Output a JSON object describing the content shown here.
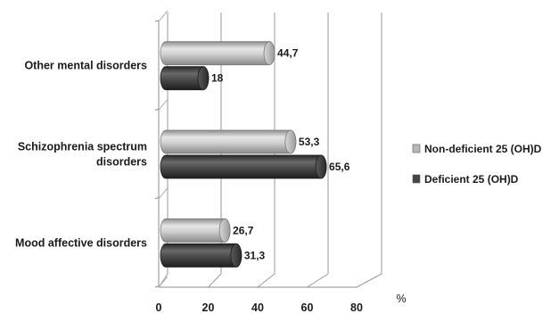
{
  "chart_data": {
    "type": "bar",
    "orientation": "horizontal",
    "style": "3d-cylinder",
    "categories": [
      "Other mental disorders",
      "Schizophrenia spectrum disorders",
      "Mood affective disorders"
    ],
    "category_display": [
      [
        "Other mental disorders"
      ],
      [
        "Schizophrenia spectrum",
        "disorders"
      ],
      [
        "Mood affective disorders"
      ]
    ],
    "series": [
      {
        "name": "Non-deficient  25 (OH)D",
        "values": [
          44.7,
          53.3,
          26.7
        ],
        "labels": [
          "44,7",
          "53,3",
          "26,7"
        ],
        "color": "#b8b8b8"
      },
      {
        "name": "Deficient 25 (OH)D",
        "values": [
          18,
          65.6,
          31.3
        ],
        "labels": [
          "18",
          "65,6",
          "31,3"
        ],
        "color": "#454545"
      }
    ],
    "x_ticks": [
      0,
      20,
      40,
      60,
      80
    ],
    "xlim": [
      0,
      80
    ],
    "x_unit": "%",
    "grid": true,
    "legend_position": "right"
  }
}
